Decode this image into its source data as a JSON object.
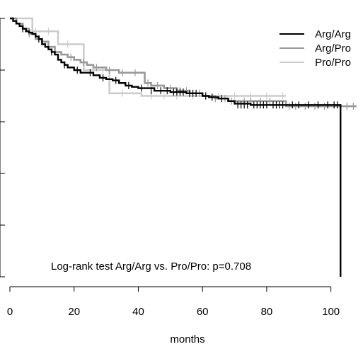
{
  "chart_data": {
    "type": "line",
    "title": "",
    "xlabel": "months",
    "ylabel": "",
    "xlim": [
      0,
      110
    ],
    "ylim": [
      0,
      1.0
    ],
    "x_ticks": [
      0,
      20,
      40,
      60,
      80,
      100
    ],
    "y_ticks": [
      0.0,
      0.2,
      0.4,
      0.6,
      0.8,
      1.0
    ],
    "y_tick_labels_visible": false,
    "grid": false,
    "legend_position": "top-right",
    "annotation": "Log-rank test Arg/Arg vs. Pro/Pro:  p=0.708",
    "series": [
      {
        "name": "Arg/Arg",
        "color": "#000000",
        "step_x": [
          0,
          1,
          2,
          3,
          4,
          5,
          6,
          7,
          8,
          9,
          10,
          11,
          12,
          13,
          14,
          15,
          16,
          17,
          18,
          20,
          22,
          24,
          26,
          28,
          30,
          32,
          34,
          36,
          38,
          40,
          45,
          50,
          55,
          60,
          62,
          65,
          68,
          70,
          75,
          80,
          85,
          90,
          95,
          100,
          103,
          103
        ],
        "step_y": [
          1.0,
          0.99,
          0.98,
          0.97,
          0.96,
          0.95,
          0.945,
          0.94,
          0.93,
          0.92,
          0.9,
          0.89,
          0.88,
          0.87,
          0.86,
          0.84,
          0.83,
          0.82,
          0.81,
          0.8,
          0.79,
          0.79,
          0.78,
          0.77,
          0.765,
          0.76,
          0.75,
          0.74,
          0.735,
          0.73,
          0.72,
          0.715,
          0.71,
          0.7,
          0.695,
          0.69,
          0.68,
          0.67,
          0.665,
          0.665,
          0.665,
          0.665,
          0.665,
          0.665,
          0.665,
          0.0
        ],
        "censor_x": [
          4,
          9,
          13,
          17,
          21,
          25,
          29,
          33,
          37,
          41,
          44,
          47,
          49,
          51,
          52,
          53,
          54,
          56,
          57,
          58,
          61,
          63,
          66,
          71,
          72,
          73,
          74,
          76,
          77,
          78,
          79,
          80,
          82,
          83,
          84,
          85,
          88,
          90,
          93,
          96,
          99,
          101,
          102
        ],
        "censor_y": [
          0.96,
          0.92,
          0.87,
          0.82,
          0.8,
          0.79,
          0.77,
          0.76,
          0.74,
          0.73,
          0.72,
          0.72,
          0.72,
          0.715,
          0.715,
          0.715,
          0.715,
          0.71,
          0.71,
          0.71,
          0.7,
          0.695,
          0.69,
          0.665,
          0.665,
          0.665,
          0.665,
          0.665,
          0.665,
          0.665,
          0.665,
          0.665,
          0.665,
          0.665,
          0.665,
          0.665,
          0.665,
          0.665,
          0.665,
          0.665,
          0.665,
          0.665,
          0.665
        ]
      },
      {
        "name": "Arg/Pro",
        "color": "#999999",
        "step_x": [
          0,
          2,
          4,
          6,
          8,
          10,
          12,
          14,
          16,
          18,
          20,
          22,
          24,
          26,
          30,
          34,
          38,
          42,
          44,
          48,
          52,
          56,
          60,
          64,
          68,
          72,
          76,
          80,
          84,
          86,
          86,
          103,
          108
        ],
        "step_y": [
          1.0,
          0.98,
          0.96,
          0.94,
          0.92,
          0.91,
          0.89,
          0.87,
          0.86,
          0.85,
          0.84,
          0.83,
          0.82,
          0.81,
          0.8,
          0.79,
          0.79,
          0.75,
          0.74,
          0.73,
          0.72,
          0.71,
          0.7,
          0.69,
          0.68,
          0.68,
          0.68,
          0.68,
          0.68,
          0.68,
          0.66,
          0.66,
          0.66
        ],
        "censor_x": [
          6,
          11,
          14,
          19,
          23,
          27,
          31,
          35,
          39,
          43,
          46,
          50,
          53,
          55,
          59,
          61,
          64,
          67,
          69,
          73,
          75,
          78,
          81,
          87,
          89,
          92,
          95,
          98,
          105,
          107
        ],
        "censor_y": [
          0.94,
          0.9,
          0.87,
          0.85,
          0.83,
          0.81,
          0.8,
          0.79,
          0.79,
          0.75,
          0.74,
          0.73,
          0.72,
          0.72,
          0.71,
          0.7,
          0.69,
          0.69,
          0.68,
          0.68,
          0.68,
          0.68,
          0.68,
          0.66,
          0.66,
          0.66,
          0.66,
          0.66,
          0.66,
          0.66
        ]
      },
      {
        "name": "Pro/Pro",
        "color": "#cccccc",
        "step_x": [
          0,
          7,
          7,
          15,
          15,
          23,
          23,
          31,
          31,
          41,
          41,
          86
        ],
        "step_y": [
          1.0,
          1.0,
          0.95,
          0.95,
          0.9,
          0.9,
          0.8,
          0.8,
          0.71,
          0.71,
          0.7,
          0.7
        ],
        "censor_x": [
          8,
          12,
          18,
          26,
          29,
          35,
          44,
          48,
          52,
          57,
          61,
          65,
          70,
          75,
          80,
          85
        ],
        "censor_y": [
          0.95,
          0.95,
          0.9,
          0.8,
          0.8,
          0.71,
          0.7,
          0.7,
          0.7,
          0.7,
          0.7,
          0.7,
          0.7,
          0.7,
          0.7,
          0.7
        ]
      }
    ]
  }
}
